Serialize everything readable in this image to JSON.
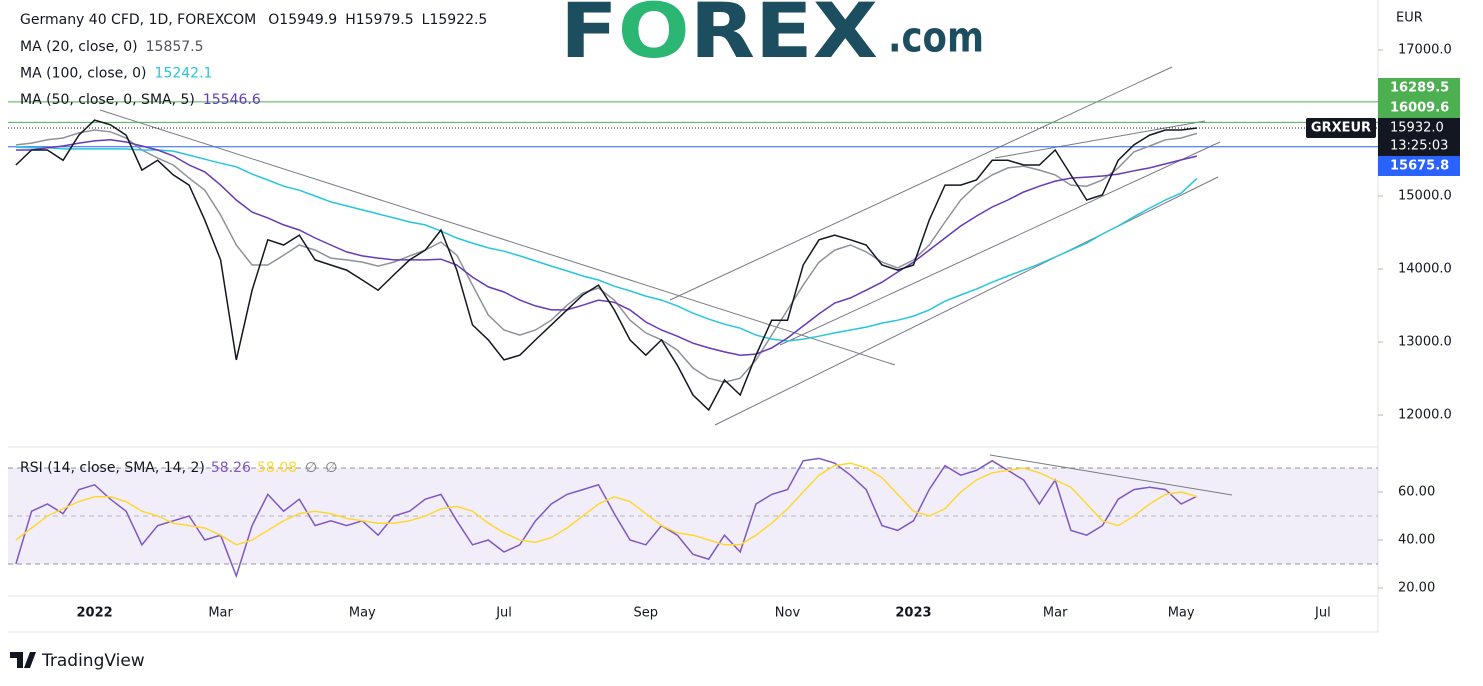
{
  "chart_data": [
    {
      "type": "line",
      "title": "Germany 40 CFD, 1D, FOREXCOM",
      "ohlc": [
        {
          "label": "O",
          "value": 15949.9
        },
        {
          "label": "H",
          "value": 15979.5
        },
        {
          "label": "L",
          "value": 15922.5
        }
      ],
      "axis_unit": "EUR",
      "symbol": "GRXEUR",
      "last_price_label": "15932.0",
      "countdown": "13:25:03",
      "categories": [
        null,
        null,
        null,
        null,
        null,
        "2022",
        null,
        null,
        null,
        null,
        null,
        null,
        null,
        "Mar",
        null,
        null,
        null,
        null,
        null,
        null,
        null,
        null,
        "May",
        null,
        null,
        null,
        null,
        null,
        null,
        null,
        null,
        "Jul",
        null,
        null,
        null,
        null,
        null,
        null,
        null,
        null,
        "Sep",
        null,
        null,
        null,
        null,
        null,
        null,
        null,
        null,
        "Nov",
        null,
        null,
        null,
        null,
        null,
        null,
        null,
        "2023",
        null,
        null,
        null,
        null,
        null,
        null,
        null,
        null,
        "Mar",
        null,
        null,
        null,
        null,
        null,
        null,
        null,
        "May",
        null,
        null,
        null,
        null,
        null,
        null,
        null,
        null,
        "Jul",
        null,
        null,
        null
      ],
      "series": [
        {
          "name": "Germany 40 CFD, 1D, FOREXCOM",
          "color": "#131722",
          "values": [
            15425,
            15630,
            15630,
            15490,
            15835,
            16040,
            15975,
            15835,
            15355,
            15490,
            15290,
            15150,
            14670,
            14125,
            12755,
            13710,
            14400,
            14330,
            14465,
            14125,
            14055,
            13985,
            13850,
            13710,
            13920,
            14125,
            14260,
            14535,
            13985,
            13235,
            13030,
            12755,
            12820,
            13030,
            13235,
            13440,
            13645,
            13780,
            13440,
            13030,
            12820,
            13030,
            12685,
            12275,
            12070,
            12480,
            12275,
            12820,
            13300,
            13300,
            14055,
            14400,
            14465,
            14400,
            14330,
            14055,
            13985,
            14055,
            14670,
            15150,
            15150,
            15220,
            15490,
            15490,
            15425,
            15425,
            15630,
            15290,
            14945,
            15015,
            15490,
            15700,
            15835,
            15905,
            15905,
            15932,
            null,
            null,
            null,
            null,
            null,
            null,
            null,
            null,
            null,
            null,
            null
          ]
        },
        {
          "name": "MA (20, close, 0)",
          "color": "#8f929b",
          "values": [
            15700,
            15725,
            15770,
            15795,
            15865,
            15905,
            15880,
            15795,
            15630,
            15520,
            15425,
            15245,
            15080,
            14740,
            14330,
            14055,
            14055,
            14190,
            14330,
            14260,
            14150,
            14125,
            14095,
            14040,
            14095,
            14180,
            14260,
            14370,
            14190,
            13780,
            13370,
            13165,
            13095,
            13165,
            13300,
            13505,
            13670,
            13740,
            13575,
            13300,
            13125,
            13030,
            12890,
            12645,
            12505,
            12450,
            12505,
            12755,
            13095,
            13440,
            13780,
            14095,
            14260,
            14330,
            14235,
            14095,
            14015,
            14125,
            14330,
            14645,
            14945,
            15150,
            15290,
            15385,
            15410,
            15355,
            15290,
            15150,
            15135,
            15220,
            15385,
            15605,
            15685,
            15770,
            15795,
            15857.5,
            null,
            null,
            null,
            null,
            null,
            null,
            null,
            null,
            null,
            null,
            null
          ]
        },
        {
          "name": "MA (100, close, 0)",
          "color": "#26c6da",
          "values": [
            15670,
            15660,
            15660,
            15645,
            15645,
            15645,
            15645,
            15645,
            15630,
            15630,
            15615,
            15560,
            15505,
            15450,
            15400,
            15300,
            15220,
            15135,
            15080,
            15000,
            14920,
            14865,
            14810,
            14755,
            14700,
            14645,
            14605,
            14520,
            14425,
            14355,
            14290,
            14245,
            14180,
            14110,
            14040,
            13975,
            13905,
            13850,
            13765,
            13700,
            13630,
            13575,
            13495,
            13395,
            13315,
            13245,
            13190,
            13095,
            13040,
            13015,
            13040,
            13080,
            13125,
            13165,
            13205,
            13260,
            13300,
            13355,
            13440,
            13560,
            13645,
            13725,
            13820,
            13905,
            13985,
            14070,
            14165,
            14260,
            14355,
            14480,
            14590,
            14715,
            14835,
            14945,
            15040,
            15242.1,
            null,
            null,
            null,
            null,
            null,
            null,
            null,
            null,
            null,
            null,
            null
          ]
        },
        {
          "name": "MA (50, close, 0, SMA, 5)",
          "color": "#673ab7",
          "values": [
            15630,
            15630,
            15660,
            15685,
            15725,
            15755,
            15770,
            15740,
            15685,
            15630,
            15550,
            15425,
            15330,
            15150,
            14945,
            14780,
            14700,
            14605,
            14535,
            14425,
            14330,
            14235,
            14180,
            14150,
            14125,
            14125,
            14125,
            14135,
            14055,
            13890,
            13755,
            13685,
            13575,
            13495,
            13440,
            13440,
            13505,
            13575,
            13545,
            13440,
            13275,
            13165,
            13080,
            12985,
            12920,
            12865,
            12820,
            12835,
            12920,
            13055,
            13220,
            13385,
            13535,
            13605,
            13710,
            13820,
            13960,
            14095,
            14260,
            14425,
            14590,
            14725,
            14850,
            14945,
            15055,
            15135,
            15205,
            15245,
            15260,
            15275,
            15300,
            15345,
            15385,
            15440,
            15495,
            15546.6,
            null,
            null,
            null,
            null,
            null,
            null,
            null,
            null,
            null,
            null,
            null
          ]
        }
      ],
      "levels": [
        {
          "value": 16289.5,
          "color": "#4caf50"
        },
        {
          "value": 16009.6,
          "color": "#4caf50"
        },
        {
          "value": 15675.8,
          "color": "#2962ff"
        }
      ],
      "ylim": [
        11590,
        17685
      ],
      "yticks": [
        {
          "value": 12000,
          "label": "12000.0"
        },
        {
          "value": 13000,
          "label": "13000.0"
        },
        {
          "value": 14000,
          "label": "14000.0"
        },
        {
          "value": 15000,
          "label": "15000.0"
        },
        {
          "value": 16000,
          "label": "16000.0"
        },
        {
          "value": 17000,
          "label": "17000.0"
        }
      ],
      "grid": false
    },
    {
      "type": "line",
      "extra_labels": [
        "∅",
        "∅"
      ],
      "series": [
        {
          "name": "RSI (14, close, SMA, 14, 2)",
          "color": "#7e57c2",
          "values": [
            30,
            52,
            55,
            51,
            61,
            63,
            57,
            52,
            38,
            46,
            48,
            50,
            40,
            42,
            25,
            46,
            59,
            52,
            57,
            46,
            48,
            46,
            48,
            42,
            50,
            52,
            57,
            59,
            48,
            38,
            40,
            35,
            38,
            48,
            55,
            59,
            61,
            63,
            51,
            40,
            38,
            46,
            42,
            34,
            32,
            42,
            35,
            55,
            59,
            61,
            73,
            74,
            72,
            67,
            61,
            46,
            44,
            48,
            61,
            71,
            67,
            69,
            73,
            69,
            65,
            55,
            65,
            44,
            42,
            46,
            57,
            61,
            62,
            61,
            55,
            58.26,
            null,
            null,
            null,
            null,
            null,
            null,
            null,
            null,
            null,
            null,
            null
          ]
        },
        {
          "color": "#fdd835",
          "values": [
            40,
            45,
            50,
            53,
            56,
            58,
            58,
            56,
            52,
            50,
            47,
            46,
            45,
            42,
            38,
            40,
            44,
            48,
            51,
            52,
            51,
            49,
            48,
            47,
            47,
            48,
            50,
            53,
            54,
            52,
            47,
            43,
            40,
            39,
            41,
            45,
            50,
            55,
            58,
            56,
            51,
            46,
            43,
            42,
            40,
            38,
            38,
            42,
            47,
            53,
            60,
            67,
            71,
            72,
            70,
            66,
            59,
            52,
            50,
            53,
            60,
            65,
            68,
            69,
            70,
            68,
            65,
            62,
            55,
            48,
            46,
            50,
            55,
            59,
            60,
            58.08,
            null,
            null,
            null,
            null,
            null,
            null,
            null,
            null,
            null,
            null,
            null
          ]
        }
      ],
      "bands": {
        "upper": 70,
        "middle": 50,
        "lower": 30
      },
      "ylim": [
        17.1,
        77.5
      ],
      "yticks": [
        {
          "value": 20,
          "label": "20.00"
        },
        {
          "value": 40,
          "label": "40.00"
        },
        {
          "value": 60,
          "label": "60.00"
        }
      ],
      "grid": false
    }
  ],
  "logo": {
    "parts": [
      "F",
      "O",
      "REX"
    ],
    "suffix": ".com"
  },
  "footer": {
    "brand": "TradingView"
  }
}
